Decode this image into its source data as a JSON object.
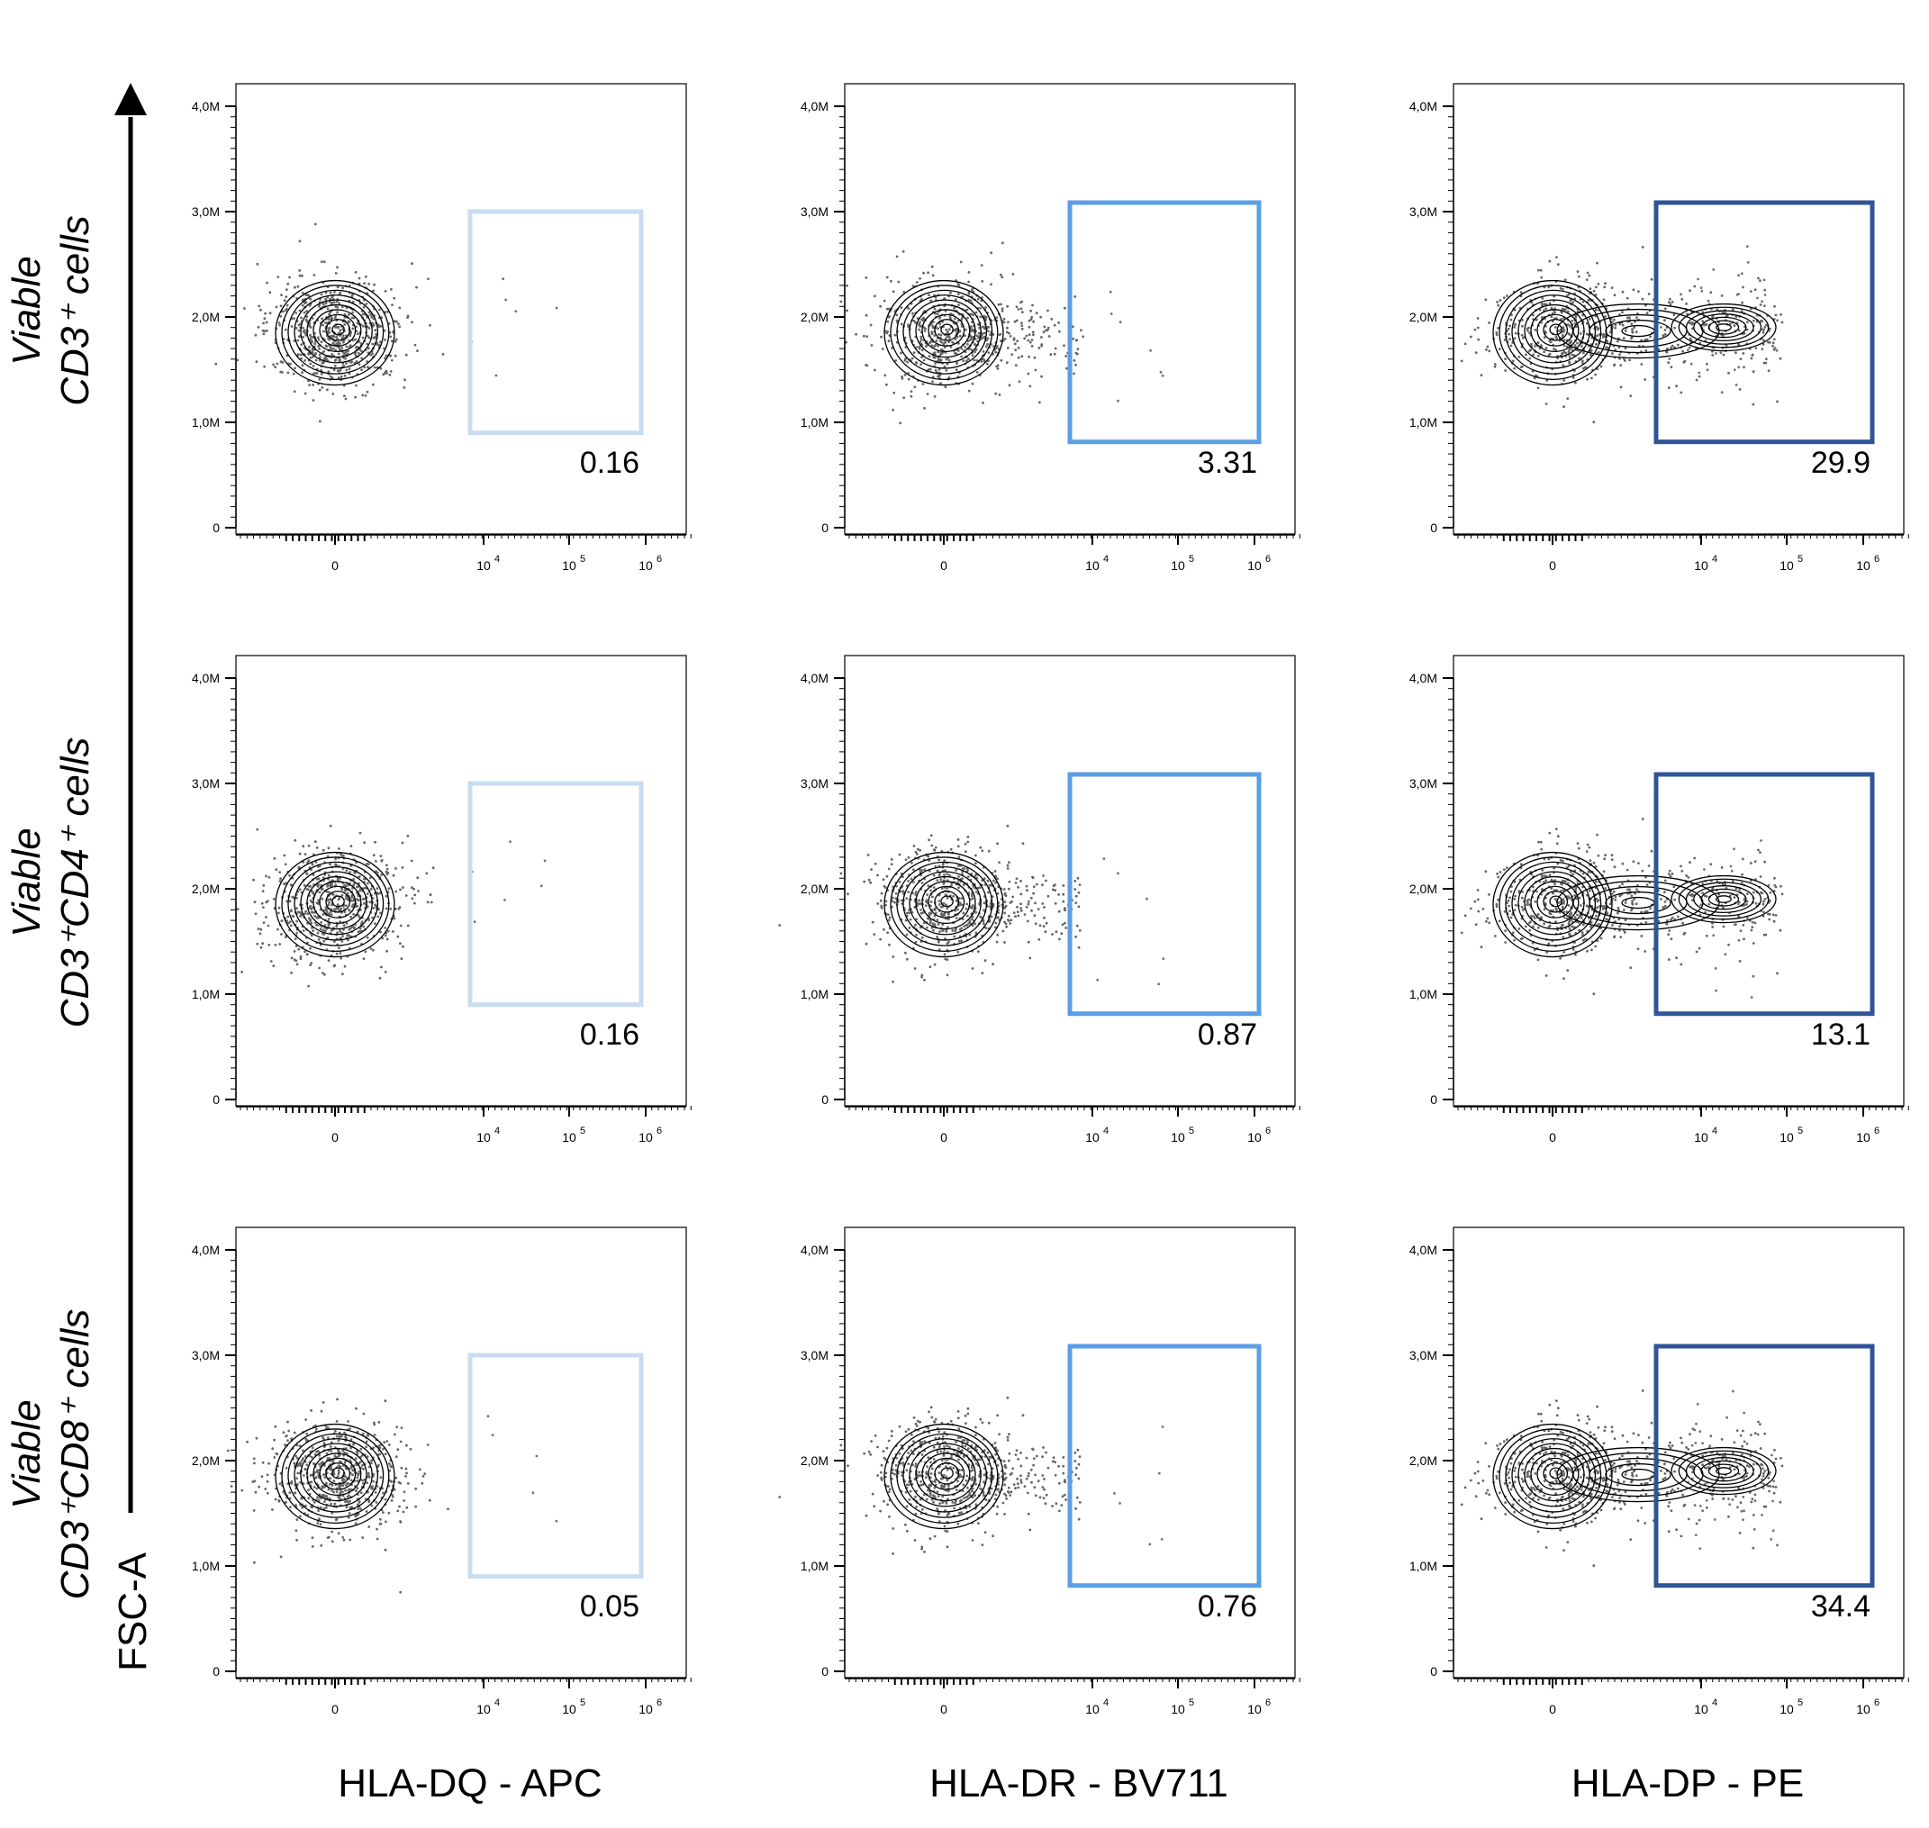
{
  "chart_data": {
    "type": "scatter",
    "title": "",
    "y_axis_label": "FSC-A",
    "y_ticks": [
      "0",
      "1,0M",
      "2,0M",
      "3,0M",
      "4,0M"
    ],
    "y_range": [
      0,
      4000000
    ],
    "x_ticks": [
      "0",
      "10",
      "10",
      "10"
    ],
    "x_tick_exponents": [
      "",
      "4",
      "5",
      "6"
    ],
    "columns": [
      {
        "label": "HLA-DQ - APC",
        "gate_color": "#c9dcf0"
      },
      {
        "label": "HLA-DR - BV711",
        "gate_color": "#5b9ee6"
      },
      {
        "label": "HLA-DP - PE",
        "gate_color": "#2f5597"
      }
    ],
    "rows": [
      {
        "label_line1": "Viable",
        "label_line2": "CD3⁺ cells"
      },
      {
        "label_line1": "Viable",
        "label_line2": "CD3⁺CD4⁺ cells"
      },
      {
        "label_line1": "Viable",
        "label_line2": "CD3⁺CD8⁺ cells"
      }
    ],
    "gate_percentages": [
      [
        "0.16",
        "3.31",
        "29.9"
      ],
      [
        "0.16",
        "0.87",
        "13.1"
      ],
      [
        "0.05",
        "0.76",
        "34.4"
      ]
    ],
    "gate_y_range": [
      900000,
      3000000
    ],
    "population_center_fsc": 1850000
  }
}
